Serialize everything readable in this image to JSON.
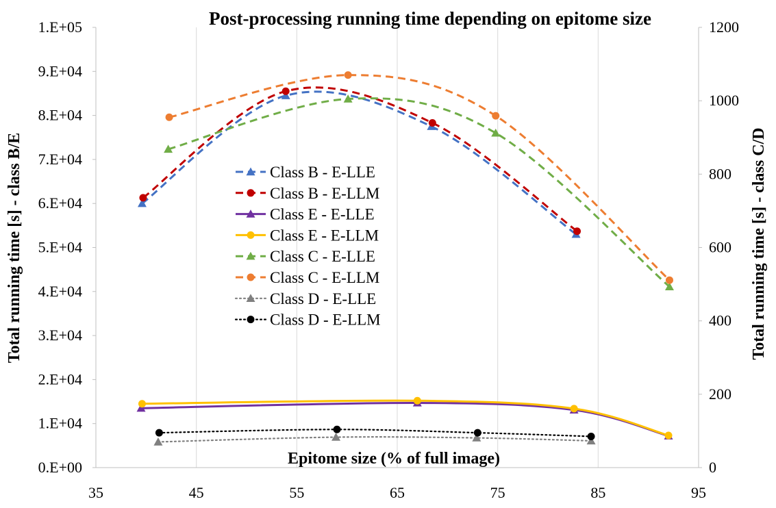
{
  "chart_data": {
    "type": "line",
    "title": "Post-processing running time depending on epitome size",
    "xlabel": "Epitome size (% of full image)",
    "ylabel_left": "Total running time [s] - class B/E",
    "ylabel_right": "Total running time [s] - class C/D",
    "xlim": [
      35,
      95
    ],
    "ylim_left": [
      0,
      100000
    ],
    "ylim_right": [
      0,
      1200
    ],
    "x_ticks": [
      "35",
      "45",
      "55",
      "65",
      "75",
      "85",
      "95"
    ],
    "x_tick_values": [
      35,
      45,
      55,
      65,
      75,
      85,
      95
    ],
    "y_left_ticks": [
      "0.E+00",
      "1.E+04",
      "2.E+04",
      "3.E+04",
      "4.E+04",
      "5.E+04",
      "6.E+04",
      "7.E+04",
      "8.E+04",
      "9.E+04",
      "1.E+05"
    ],
    "y_left_tick_values": [
      0,
      10000,
      20000,
      30000,
      40000,
      50000,
      60000,
      70000,
      80000,
      90000,
      100000
    ],
    "y_right_ticks": [
      "0",
      "200",
      "400",
      "600",
      "800",
      "1000",
      "1200"
    ],
    "y_right_tick_values": [
      0,
      200,
      400,
      600,
      800,
      1000,
      1200
    ],
    "grid": "vertical",
    "legend_position": "center-left",
    "series": [
      {
        "name": "Class B - E-LLE",
        "axis": "left",
        "color": "#4472C4",
        "dash": "dashed",
        "marker": "triangle",
        "x": [
          39.6,
          53.9,
          68.4,
          82.8
        ],
        "y": [
          60000,
          84500,
          77500,
          53000
        ]
      },
      {
        "name": "Class B - E-LLM",
        "axis": "left",
        "color": "#C00000",
        "dash": "dashed",
        "marker": "circle",
        "x": [
          39.7,
          53.9,
          68.5,
          82.9
        ],
        "y": [
          61300,
          85500,
          78300,
          53700
        ]
      },
      {
        "name": "Class E - E-LLE",
        "axis": "left",
        "color": "#7030A0",
        "dash": "solid",
        "marker": "triangle",
        "x": [
          39.5,
          67.0,
          82.6,
          92.0
        ],
        "y": [
          13500,
          14700,
          13100,
          7200
        ]
      },
      {
        "name": "Class E - E-LLM",
        "axis": "left",
        "color": "#FFC000",
        "dash": "solid",
        "marker": "circle",
        "x": [
          39.6,
          67.0,
          82.6,
          92.0
        ],
        "y": [
          14500,
          15200,
          13400,
          7300
        ]
      },
      {
        "name": "Class C - E-LLE",
        "axis": "right",
        "color": "#70AD47",
        "dash": "dashed",
        "marker": "triangle",
        "x": [
          42.2,
          60.1,
          74.8,
          92.1
        ],
        "y": [
          868,
          1005,
          912,
          493
        ]
      },
      {
        "name": "Class C - E-LLM",
        "axis": "right",
        "color": "#ED7D31",
        "dash": "dashed",
        "marker": "circle",
        "x": [
          42.3,
          60.1,
          74.8,
          92.1
        ],
        "y": [
          955,
          1070,
          959,
          511
        ]
      },
      {
        "name": "Class D - E-LLE",
        "axis": "right",
        "color": "#808080",
        "dash": "dotted",
        "marker": "triangle",
        "x": [
          41.2,
          58.9,
          72.9,
          84.3
        ],
        "y": [
          70,
          83,
          81,
          73
        ]
      },
      {
        "name": "Class D - E-LLM",
        "axis": "right",
        "color": "#000000",
        "dash": "dotted",
        "marker": "circle",
        "x": [
          41.3,
          59.0,
          73.0,
          84.3
        ],
        "y": [
          95,
          104,
          95,
          85
        ]
      }
    ]
  }
}
